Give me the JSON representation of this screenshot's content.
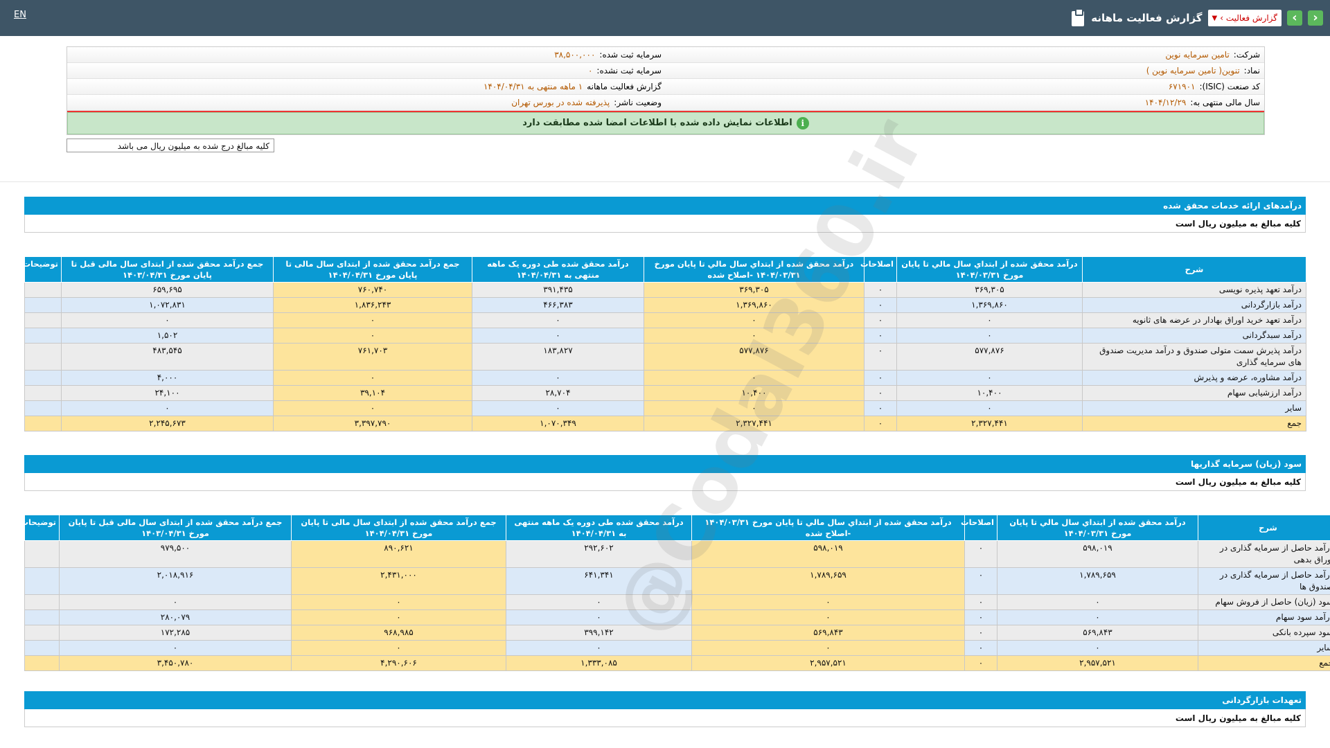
{
  "header": {
    "lang": "EN",
    "title": "گزارش فعالیت ماهانه",
    "report_select": "گزارش فعالیت ›",
    "prev_label": "›",
    "next_label": "‹"
  },
  "info": {
    "company_label": "شرکت:",
    "company_value": "تامین سرمایه نوین",
    "capital_registered_label": "سرمایه ثبت شده:",
    "capital_registered_value": "۳۸,۵۰۰,۰۰۰",
    "symbol_label": "نماد:",
    "symbol_value": "تنوین( تامین سرمایه نوین )",
    "capital_unregistered_label": "سرمایه ثبت نشده:",
    "capital_unregistered_value": "۰",
    "isic_label": "کد صنعت (ISIC):",
    "isic_value": "۶۷۱۹۰۱",
    "report_label": "گزارش فعالیت ماهانه",
    "report_value": "۱ ماهه منتهی به ۱۴۰۴/۰۴/۳۱",
    "fiscal_label": "سال مالی منتهی به:",
    "fiscal_value": "۱۴۰۴/۱۲/۲۹",
    "status_label": "وضعیت ناشر:",
    "status_value": "پذیرفته شده در بورس تهران",
    "notice": "اطلاعات نمایش داده شده با اطلاعات امضا شده مطابقت دارد",
    "notice_icon": "i",
    "unit_note": "کلیه مبالغ درج شده به میلیون ریال می باشد"
  },
  "watermark": "@Codal360.ir",
  "sections": [
    {
      "title": "درآمدهای ارائه خدمات محقق شده",
      "unit": "کلیه مبالغ به میلیون ریال است",
      "headers": [
        "شرح",
        "درآمد محقق شده از ابتداي سال مالي تا پايان مورخ ۱۴۰۴/۰۳/۳۱",
        "اصلاحات",
        "درآمد محقق شده از ابتداي سال مالي تا پايان مورخ ۱۴۰۴/۰۳/۳۱ -اصلاح شده",
        "درآمد محقق شده طی دوره یک ماهه منتهی به ۱۴۰۴/۰۴/۳۱",
        "جمع درآمد محقق شده از ابتدای سال مالی تا پایان مورخ ۱۴۰۴/۰۴/۳۱",
        "جمع درآمد محقق شده از ابتدای سال مالی قبل تا پایان مورخ ۱۴۰۳/۰۴/۳۱",
        "توضیحات"
      ],
      "rows": [
        {
          "desc": "درآمد تعهد پذیره نویسی",
          "c1": "۳۶۹,۳۰۵",
          "c2": "۰",
          "c3": "۳۶۹,۳۰۵",
          "c4": "۳۹۱,۴۳۵",
          "c5": "۷۶۰,۷۴۰",
          "c6": "۶۵۹,۶۹۵",
          "c7": ""
        },
        {
          "desc": "درآمد بازارگردانی",
          "c1": "۱,۳۶۹,۸۶۰",
          "c2": "۰",
          "c3": "۱,۳۶۹,۸۶۰",
          "c4": "۴۶۶,۳۸۳",
          "c5": "۱,۸۳۶,۲۴۳",
          "c6": "۱,۰۷۲,۸۳۱",
          "c7": ""
        },
        {
          "desc": "درآمد تعهد خرید اوراق بهادار در عرضه های ثانویه",
          "c1": "۰",
          "c2": "۰",
          "c3": "۰",
          "c4": "۰",
          "c5": "۰",
          "c6": "۰",
          "c7": ""
        },
        {
          "desc": "درآمد سبدگردانی",
          "c1": "۰",
          "c2": "۰",
          "c3": "۰",
          "c4": "۰",
          "c5": "۰",
          "c6": "۱,۵۰۲",
          "c7": ""
        },
        {
          "desc": "درآمد پذیرش سمت متولی صندوق و درآمد مدیریت صندوق های سرمایه گذاری",
          "c1": "۵۷۷,۸۷۶",
          "c2": "۰",
          "c3": "۵۷۷,۸۷۶",
          "c4": "۱۸۳,۸۲۷",
          "c5": "۷۶۱,۷۰۳",
          "c6": "۴۸۳,۵۴۵",
          "c7": ""
        },
        {
          "desc": "درآمد مشاوره، عرضه و پذیرش",
          "c1": "۰",
          "c2": "۰",
          "c3": "۰",
          "c4": "۰",
          "c5": "۰",
          "c6": "۴,۰۰۰",
          "c7": ""
        },
        {
          "desc": "درآمد ارزشیابی سهام",
          "c1": "۱۰,۴۰۰",
          "c2": "۰",
          "c3": "۱۰,۴۰۰",
          "c4": "۲۸,۷۰۴",
          "c5": "۳۹,۱۰۴",
          "c6": "۲۴,۱۰۰",
          "c7": ""
        },
        {
          "desc": "سایر",
          "c1": "۰",
          "c2": "۰",
          "c3": "۰",
          "c4": "۰",
          "c5": "۰",
          "c6": "۰",
          "c7": ""
        },
        {
          "desc": "جمع",
          "c1": "۲,۳۲۷,۴۴۱",
          "c2": "۰",
          "c3": "۲,۳۲۷,۴۴۱",
          "c4": "۱,۰۷۰,۳۴۹",
          "c5": "۳,۳۹۷,۷۹۰",
          "c6": "۲,۲۴۵,۶۷۳",
          "c7": ""
        }
      ]
    },
    {
      "title": "سود (زیان) سرمایه گذاریها",
      "unit": "کلیه مبالغ به میلیون ریال است",
      "headers": [
        "شرح",
        "درآمد محقق شده از ابتداي سال مالي تا پايان مورخ ۱۴۰۴/۰۳/۳۱",
        "اصلاحات",
        "درآمد محقق شده از ابتداي سال مالي تا پايان مورخ ۱۴۰۴/۰۳/۳۱ -اصلاح شده",
        "درآمد محقق شده طی دوره یک ماهه منتهی به ۱۴۰۴/۰۴/۳۱",
        "جمع درآمد محقق شده از ابتدای سال مالی تا پایان مورخ ۱۴۰۴/۰۴/۳۱",
        "جمع درآمد محقق شده از ابتدای سال مالی قبل تا پایان مورخ ۱۴۰۳/۰۴/۳۱",
        "توضیحات"
      ],
      "rows": [
        {
          "desc": "درآمد حاصل از سرمایه گذاری در اوراق بدهی",
          "c1": "۵۹۸,۰۱۹",
          "c2": "۰",
          "c3": "۵۹۸,۰۱۹",
          "c4": "۲۹۲,۶۰۲",
          "c5": "۸۹۰,۶۲۱",
          "c6": "۹۷۹,۵۰۰",
          "c7": ""
        },
        {
          "desc": "درآمد حاصل از سرمایه گذاری در صندوق ها",
          "c1": "۱,۷۸۹,۶۵۹",
          "c2": "۰",
          "c3": "۱,۷۸۹,۶۵۹",
          "c4": "۶۴۱,۳۴۱",
          "c5": "۲,۴۳۱,۰۰۰",
          "c6": "۲,۰۱۸,۹۱۶",
          "c7": ""
        },
        {
          "desc": "سود (زیان) حاصل از فروش سهام",
          "c1": "۰",
          "c2": "۰",
          "c3": "۰",
          "c4": "۰",
          "c5": "۰",
          "c6": "۰",
          "c7": ""
        },
        {
          "desc": "درآمد سود سهام",
          "c1": "۰",
          "c2": "۰",
          "c3": "۰",
          "c4": "۰",
          "c5": "۰",
          "c6": "۲۸۰,۰۷۹",
          "c7": ""
        },
        {
          "desc": "سود سپرده بانکی",
          "c1": "۵۶۹,۸۴۳",
          "c2": "۰",
          "c3": "۵۶۹,۸۴۳",
          "c4": "۳۹۹,۱۴۲",
          "c5": "۹۶۸,۹۸۵",
          "c6": "۱۷۲,۲۸۵",
          "c7": ""
        },
        {
          "desc": "سایر",
          "c1": "۰",
          "c2": "۰",
          "c3": "۰",
          "c4": "۰",
          "c5": "۰",
          "c6": "۰",
          "c7": ""
        },
        {
          "desc": "جمع",
          "c1": "۲,۹۵۷,۵۲۱",
          "c2": "۰",
          "c3": "۲,۹۵۷,۵۲۱",
          "c4": "۱,۳۳۳,۰۸۵",
          "c5": "۴,۲۹۰,۶۰۶",
          "c6": "۳,۴۵۰,۷۸۰",
          "c7": ""
        }
      ]
    },
    {
      "title": "تعهدات بازارگردانی",
      "unit": "کلیه مبالغ به میلیون ریال است"
    }
  ]
}
